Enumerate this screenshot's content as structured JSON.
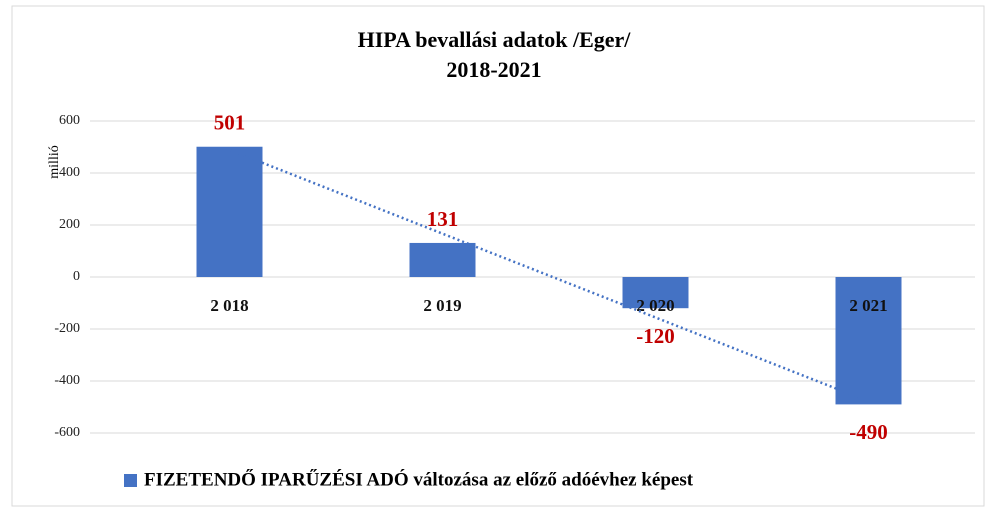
{
  "chart_data": {
    "type": "bar",
    "title": "HIPA bevallási adatok /Eger/",
    "subtitle": "2018-2021",
    "y_label": "millió",
    "categories": [
      "2 018",
      "2 019",
      "2 020",
      "2 021"
    ],
    "series": [
      {
        "name": "FIZETENDŐ IPARŰZÉSI ADÓ változása az előző adóévhez képest",
        "color": "#4472c4",
        "values": [
          501,
          131,
          -120,
          -490
        ]
      }
    ],
    "ylim": [
      -600,
      600
    ],
    "yticks": [
      -600,
      -400,
      -200,
      0,
      200,
      400,
      600
    ],
    "grid": true,
    "trendline": true,
    "legend": "bottom",
    "value_label_color": "#c00000"
  }
}
